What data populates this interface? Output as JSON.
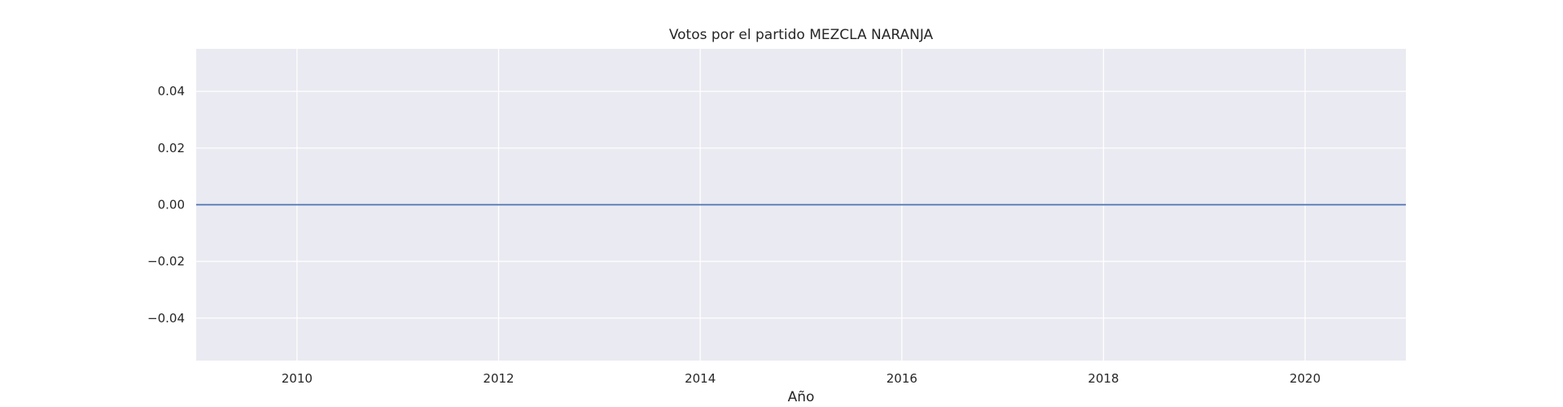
{
  "chart_data": {
    "type": "line",
    "title": "Votos por el partido MEZCLA NARANJA",
    "xlabel": "Año",
    "ylabel": "",
    "x": [
      2009,
      2010,
      2011,
      2012,
      2013,
      2014,
      2015,
      2016,
      2017,
      2018,
      2019,
      2020,
      2021
    ],
    "series": [
      {
        "values": [
          0,
          0,
          0,
          0,
          0,
          0,
          0,
          0,
          0,
          0,
          0,
          0,
          0
        ]
      }
    ],
    "xlim": [
      2009,
      2021
    ],
    "ylim": [
      -0.055,
      0.055
    ],
    "xticks": [
      2010,
      2012,
      2014,
      2016,
      2018,
      2020
    ],
    "xtick_labels": [
      "2010",
      "2012",
      "2014",
      "2016",
      "2018",
      "2020"
    ],
    "yticks": [
      0.04,
      0.02,
      0.0,
      -0.02,
      -0.04
    ],
    "ytick_labels": [
      "0.04",
      "0.02",
      "0.00",
      "−0.02",
      "−0.04"
    ],
    "grid": true,
    "colors": {
      "background": "#eaeaf2",
      "grid": "#ffffff",
      "line": "#4c72b0"
    }
  }
}
